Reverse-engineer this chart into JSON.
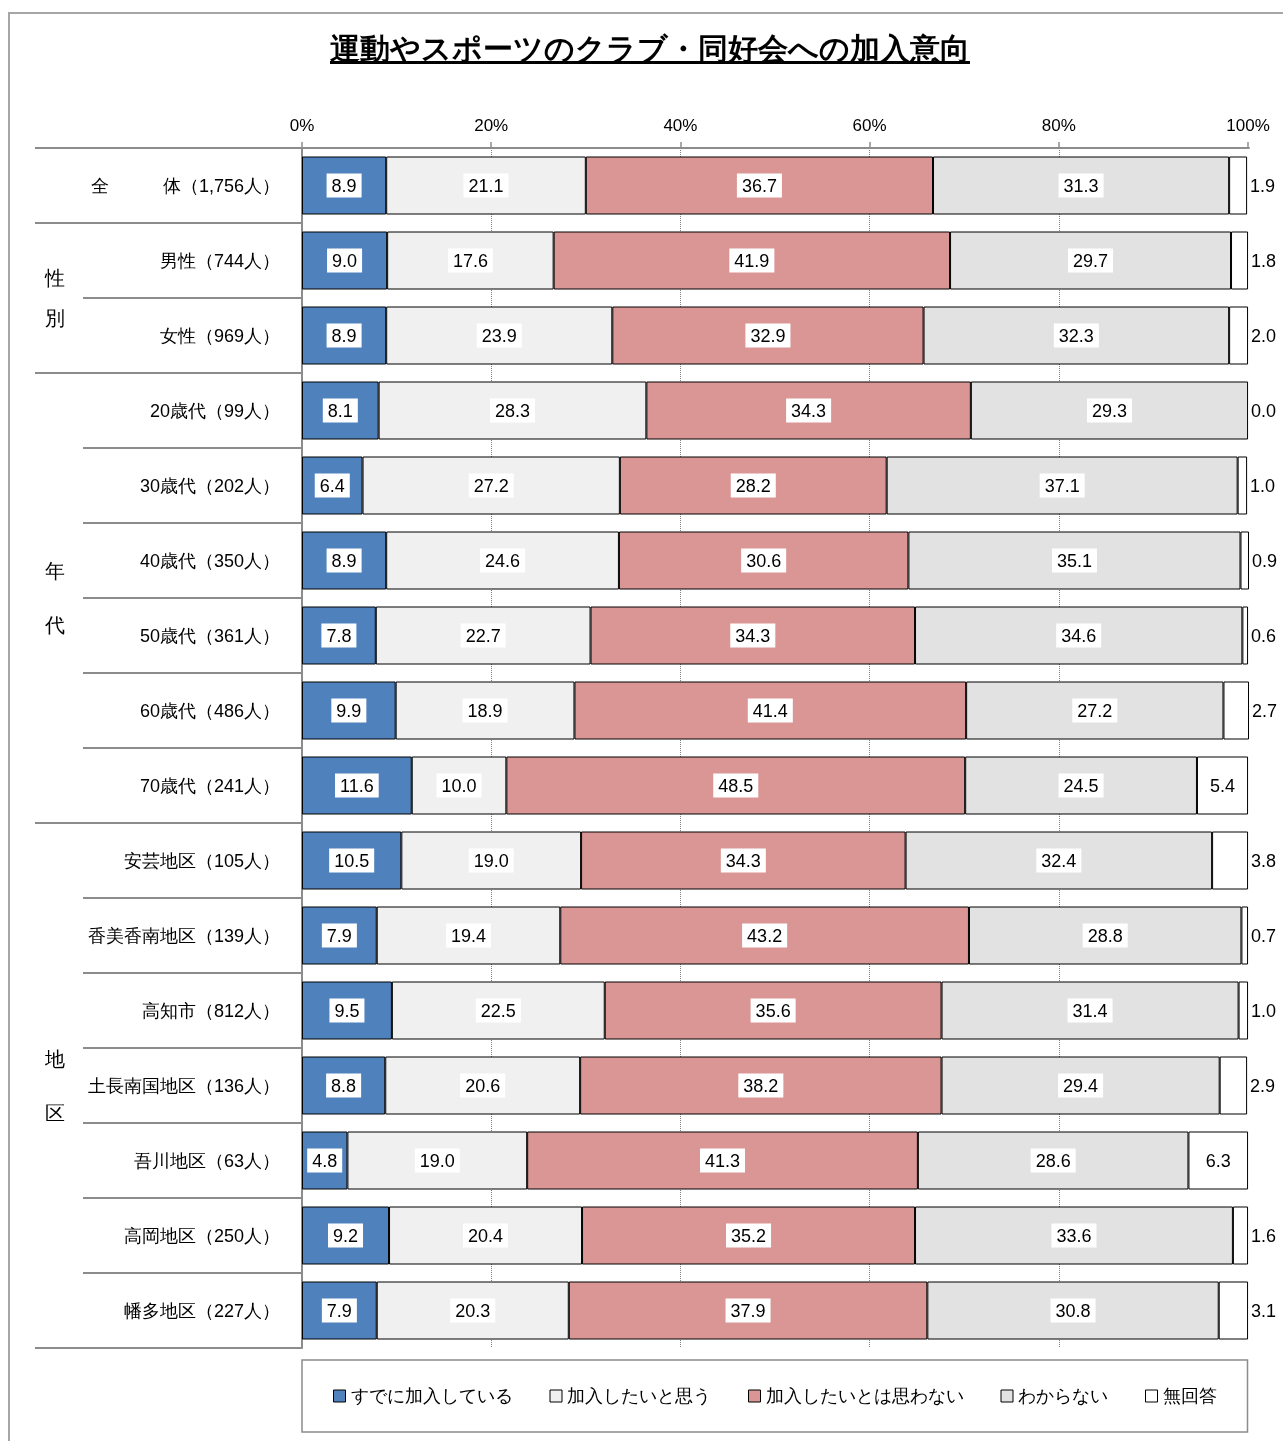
{
  "chart_data": {
    "type": "bar",
    "orientation": "horizontal",
    "stacked": true,
    "title": "運動やスポーツのクラブ・同好会への加入意向",
    "categories": [
      "全　　　体（1,756人）",
      "男性（744人）",
      "女性（969人）",
      "20歳代（99人）",
      "30歳代（202人）",
      "40歳代（350人）",
      "50歳代（361人）",
      "60歳代（486人）",
      "70歳代（241人）",
      "安芸地区（105人）",
      "香美香南地区（139人）",
      "高知市（812人）",
      "土長南国地区（136人）",
      "吾川地区（63人）",
      "高岡地区（250人）",
      "幡多地区（227人）"
    ],
    "series": [
      {
        "name": "すでに加入している",
        "color": "#4f81bd",
        "values": [
          8.9,
          9.0,
          8.9,
          8.1,
          6.4,
          8.9,
          7.8,
          9.9,
          11.6,
          10.5,
          7.9,
          9.5,
          8.8,
          4.8,
          9.2,
          7.9
        ],
        "value_labels": [
          "8.9",
          "9.0",
          "8.9",
          "8.1",
          "6.4",
          "8.9",
          "7.8",
          "9.9",
          "11.6",
          "10.5",
          "7.9",
          "9.5",
          "8.8",
          "4.8",
          "9.2",
          "7.9"
        ]
      },
      {
        "name": "加入したいと思う",
        "color": "#f0f0f0",
        "values": [
          21.1,
          17.6,
          23.9,
          28.3,
          27.2,
          24.6,
          22.7,
          18.9,
          10.0,
          19.0,
          19.4,
          22.5,
          20.6,
          19.0,
          20.4,
          20.3
        ],
        "value_labels": [
          "21.1",
          "17.6",
          "23.9",
          "28.3",
          "27.2",
          "24.6",
          "22.7",
          "18.9",
          "10.0",
          "19.0",
          "19.4",
          "22.5",
          "20.6",
          "19.0",
          "20.4",
          "20.3"
        ]
      },
      {
        "name": "加入したいとは思わない",
        "color": "#d99694",
        "values": [
          36.7,
          41.9,
          32.9,
          34.3,
          28.2,
          30.6,
          34.3,
          41.4,
          48.5,
          34.3,
          43.2,
          35.6,
          38.2,
          41.3,
          35.2,
          37.9
        ],
        "value_labels": [
          "36.7",
          "41.9",
          "32.9",
          "34.3",
          "28.2",
          "30.6",
          "34.3",
          "41.4",
          "48.5",
          "34.3",
          "43.2",
          "35.6",
          "38.2",
          "41.3",
          "35.2",
          "37.9"
        ]
      },
      {
        "name": "わからない",
        "color": "#e2e2e2",
        "values": [
          31.3,
          29.7,
          32.3,
          29.3,
          37.1,
          35.1,
          34.6,
          27.2,
          24.5,
          32.4,
          28.8,
          31.4,
          29.4,
          28.6,
          33.6,
          30.8
        ],
        "value_labels": [
          "31.3",
          "29.7",
          "32.3",
          "29.3",
          "37.1",
          "35.1",
          "34.6",
          "27.2",
          "24.5",
          "32.4",
          "28.8",
          "31.4",
          "29.4",
          "28.6",
          "33.6",
          "30.8"
        ]
      },
      {
        "name": "無回答",
        "color": "#ffffff",
        "values": [
          1.9,
          1.8,
          2.0,
          0.0,
          1.0,
          0.9,
          0.6,
          2.7,
          5.4,
          3.8,
          0.7,
          1.0,
          2.9,
          6.3,
          1.6,
          3.1
        ],
        "value_labels": [
          "1.9",
          "1.8",
          "2.0",
          "0.0",
          "1.0",
          "0.9",
          "0.6",
          "2.7",
          "5.4",
          "3.8",
          "0.7",
          "1.0",
          "2.9",
          "6.3",
          "1.6",
          "3.1"
        ]
      }
    ],
    "xlim": [
      0,
      100.1
    ],
    "xticks": [
      {
        "value": 0,
        "label": "0%"
      },
      {
        "value": 20,
        "label": "20%"
      },
      {
        "value": 40,
        "label": "40%"
      },
      {
        "value": 60,
        "label": "60%"
      },
      {
        "value": 80,
        "label": "80%"
      },
      {
        "value": 100,
        "label": "100%"
      }
    ],
    "grid": "x",
    "legend": "bottom",
    "annotations": [
      "性別",
      "年代",
      "地区"
    ]
  }
}
